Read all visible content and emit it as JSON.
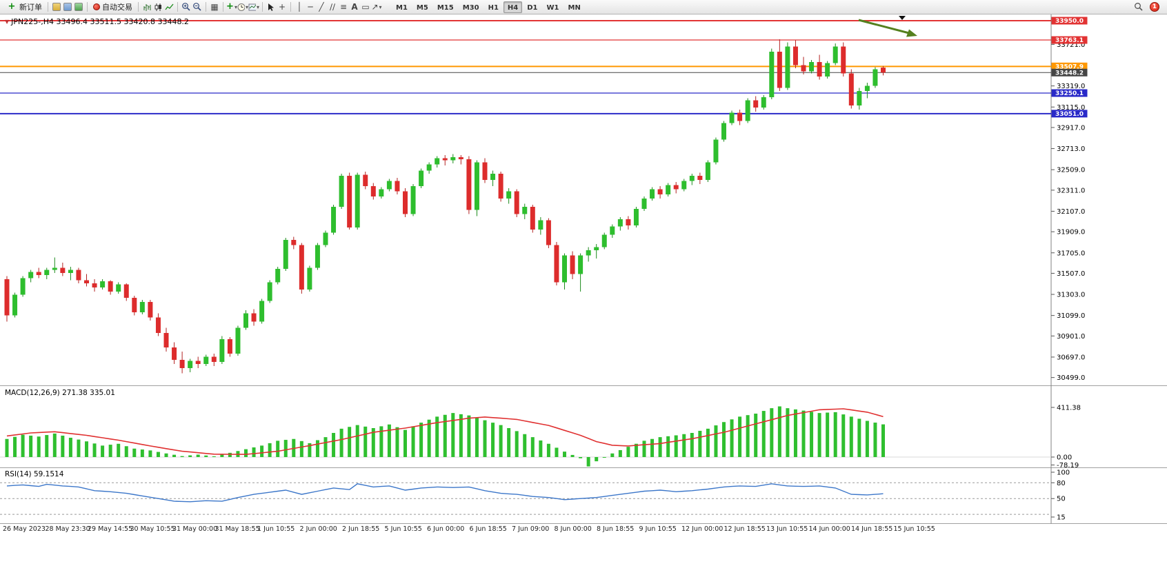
{
  "toolbar": {
    "new_order_label": "新订单",
    "auto_trading_label": "自动交易",
    "timeframes": [
      "M1",
      "M5",
      "M15",
      "M30",
      "H1",
      "H4",
      "D1",
      "W1",
      "MN"
    ],
    "active_timeframe": "H4",
    "notification_count": "1"
  },
  "icons": {
    "plus": "+",
    "caret_down": "▾",
    "tile_windows": "▦",
    "crosshair": "+",
    "vertical_line": "│",
    "horizontal_line": "─",
    "trend_line": "╱",
    "channel": "∕∕",
    "fibonacci": "≡",
    "text_tool": "A",
    "text_label": "▭",
    "arrow_tool": "↗",
    "triangle_down": "▼"
  },
  "chart": {
    "symbol_title": "JPN225-,H4 33496.4 33511.5 33420.8 33448.2",
    "colors": {
      "bull": "#2ebe2e",
      "bear": "#dd2c2c",
      "wick_bull": "#1b8a1b",
      "wick_bear": "#b22222",
      "macd_hist": "#2fbf2f",
      "macd_signal": "#e03030",
      "rsi": "#3b76c9",
      "axis_line": "#808080",
      "separator": "#a0a0a0",
      "arrow_annotation": "#55801e"
    },
    "hlines": [
      {
        "value": 33950.0,
        "label": "33950.0",
        "color": "#e23333",
        "width": 2
      },
      {
        "value": 33763.1,
        "label": "33763.1",
        "color": "#e23333",
        "width": 1.2
      },
      {
        "value": 33507.9,
        "label": "33507.9",
        "color": "#ff9800",
        "width": 2
      },
      {
        "value": 33448.2,
        "label": "33448.2",
        "color": "#454545",
        "width": 1
      },
      {
        "value": 33250.1,
        "label": "33250.1",
        "color": "#2929c8",
        "width": 1.2
      },
      {
        "value": 33051.0,
        "label": "33051.0",
        "color": "#2929c8",
        "width": 2
      }
    ],
    "y_ticks": [
      "33721.0",
      "33319.0",
      "33115.0",
      "32917.0",
      "32713.0",
      "32509.0",
      "32311.0",
      "32107.0",
      "31909.0",
      "31705.0",
      "31507.0",
      "31303.0",
      "31099.0",
      "30901.0",
      "30697.0",
      "30499.0"
    ]
  },
  "chart_data": {
    "type": "candlestick",
    "symbol": "JPN225-",
    "timeframe": "H4",
    "ohlc_readout": {
      "open": "33496.4",
      "high": "33511.5",
      "low": "33420.8",
      "close": "33448.2"
    },
    "x_labels": [
      "26 May 2023",
      "28 May 23:30",
      "29 May 14:55",
      "30 May 10:55",
      "31 May 00:00",
      "31 May 18:55",
      "1 Jun 10:55",
      "2 Jun 00:00",
      "2 Jun 18:55",
      "5 Jun 10:55",
      "6 Jun 00:00",
      "6 Jun 18:55",
      "7 Jun 09:00",
      "8 Jun 00:00",
      "8 Jun 18:55",
      "9 Jun 10:55",
      "12 Jun 00:00",
      "12 Jun 18:55",
      "13 Jun 10:55",
      "14 Jun 00:00",
      "14 Jun 18:55",
      "15 Jun 10:55"
    ],
    "candles": [
      [
        31450,
        31480,
        31040,
        31100
      ],
      [
        31100,
        31320,
        31080,
        31300
      ],
      [
        31300,
        31480,
        31280,
        31460
      ],
      [
        31460,
        31540,
        31420,
        31520
      ],
      [
        31520,
        31560,
        31460,
        31490
      ],
      [
        31490,
        31560,
        31450,
        31540
      ],
      [
        31540,
        31660,
        31510,
        31560
      ],
      [
        31560,
        31610,
        31480,
        31510
      ],
      [
        31510,
        31570,
        31440,
        31540
      ],
      [
        31540,
        31560,
        31410,
        31440
      ],
      [
        31440,
        31500,
        31380,
        31410
      ],
      [
        31410,
        31450,
        31330,
        31370
      ],
      [
        31370,
        31450,
        31350,
        31430
      ],
      [
        31430,
        31440,
        31300,
        31330
      ],
      [
        31330,
        31420,
        31310,
        31400
      ],
      [
        31400,
        31410,
        31240,
        31270
      ],
      [
        31270,
        31290,
        31100,
        31130
      ],
      [
        31130,
        31250,
        31110,
        31230
      ],
      [
        31230,
        31250,
        31050,
        31080
      ],
      [
        31080,
        31120,
        30900,
        30930
      ],
      [
        30930,
        30980,
        30750,
        30790
      ],
      [
        30790,
        30840,
        30630,
        30670
      ],
      [
        30670,
        30750,
        30540,
        30590
      ],
      [
        30590,
        30680,
        30550,
        30660
      ],
      [
        30660,
        30700,
        30590,
        30630
      ],
      [
        30630,
        30720,
        30610,
        30700
      ],
      [
        30700,
        30730,
        30610,
        30650
      ],
      [
        30650,
        30900,
        30630,
        30870
      ],
      [
        30870,
        30890,
        30700,
        30730
      ],
      [
        30730,
        31000,
        30710,
        30980
      ],
      [
        30980,
        31150,
        30960,
        31120
      ],
      [
        31120,
        31160,
        31000,
        31040
      ],
      [
        31040,
        31260,
        31020,
        31240
      ],
      [
        31240,
        31440,
        31220,
        31420
      ],
      [
        31420,
        31570,
        31400,
        31550
      ],
      [
        31550,
        31850,
        31530,
        31830
      ],
      [
        31830,
        31860,
        31740,
        31780
      ],
      [
        31780,
        31800,
        31310,
        31350
      ],
      [
        31350,
        31580,
        31330,
        31560
      ],
      [
        31560,
        31800,
        31540,
        31780
      ],
      [
        31780,
        31920,
        31760,
        31900
      ],
      [
        31900,
        32170,
        31880,
        32150
      ],
      [
        32150,
        32470,
        32130,
        32450
      ],
      [
        32450,
        32480,
        31930,
        31950
      ],
      [
        31950,
        32480,
        31930,
        32460
      ],
      [
        32460,
        32490,
        32320,
        32350
      ],
      [
        32350,
        32380,
        32220,
        32250
      ],
      [
        32250,
        32340,
        32230,
        32320
      ],
      [
        32320,
        32420,
        32300,
        32400
      ],
      [
        32400,
        32430,
        32270,
        32300
      ],
      [
        32300,
        32330,
        32050,
        32080
      ],
      [
        32080,
        32370,
        32060,
        32350
      ],
      [
        32350,
        32520,
        32330,
        32500
      ],
      [
        32500,
        32580,
        32470,
        32560
      ],
      [
        32560,
        32640,
        32530,
        32620
      ],
      [
        32620,
        32650,
        32550,
        32600
      ],
      [
        32600,
        32660,
        32570,
        32630
      ],
      [
        32630,
        32650,
        32560,
        32610
      ],
      [
        32610,
        32640,
        32080,
        32120
      ],
      [
        32120,
        32600,
        32060,
        32580
      ],
      [
        32580,
        32620,
        32380,
        32410
      ],
      [
        32410,
        32500,
        32350,
        32470
      ],
      [
        32470,
        32490,
        32200,
        32230
      ],
      [
        32230,
        32330,
        32180,
        32300
      ],
      [
        32300,
        32320,
        32050,
        32080
      ],
      [
        32080,
        32180,
        32030,
        32150
      ],
      [
        32150,
        32170,
        31900,
        31930
      ],
      [
        31930,
        32050,
        31880,
        32020
      ],
      [
        32020,
        32040,
        31750,
        31780
      ],
      [
        31780,
        31810,
        31390,
        31420
      ],
      [
        31420,
        31700,
        31350,
        31680
      ],
      [
        31680,
        31720,
        31450,
        31500
      ],
      [
        31500,
        31700,
        31330,
        31680
      ],
      [
        31680,
        31760,
        31620,
        31730
      ],
      [
        31730,
        31790,
        31650,
        31760
      ],
      [
        31760,
        31900,
        31740,
        31880
      ],
      [
        31880,
        31980,
        31850,
        31960
      ],
      [
        31960,
        32050,
        31920,
        32030
      ],
      [
        32030,
        32060,
        31930,
        31970
      ],
      [
        31970,
        32150,
        31950,
        32130
      ],
      [
        32130,
        32250,
        32110,
        32230
      ],
      [
        32230,
        32340,
        32210,
        32320
      ],
      [
        32320,
        32350,
        32230,
        32270
      ],
      [
        32270,
        32380,
        32250,
        32360
      ],
      [
        32360,
        32390,
        32280,
        32320
      ],
      [
        32320,
        32420,
        32300,
        32400
      ],
      [
        32400,
        32470,
        32360,
        32450
      ],
      [
        32450,
        32480,
        32370,
        32410
      ],
      [
        32410,
        32600,
        32390,
        32580
      ],
      [
        32580,
        32820,
        32560,
        32800
      ],
      [
        32800,
        32980,
        32780,
        32960
      ],
      [
        32960,
        33080,
        32940,
        33060
      ],
      [
        33060,
        33090,
        32940,
        32980
      ],
      [
        32980,
        33200,
        32960,
        33180
      ],
      [
        33180,
        33220,
        33070,
        33110
      ],
      [
        33110,
        33230,
        33090,
        33210
      ],
      [
        33210,
        33680,
        33190,
        33650
      ],
      [
        33650,
        33770,
        33270,
        33300
      ],
      [
        33300,
        33740,
        33280,
        33700
      ],
      [
        33700,
        33760,
        33490,
        33520
      ],
      [
        33520,
        33600,
        33430,
        33460
      ],
      [
        33460,
        33570,
        33440,
        33550
      ],
      [
        33550,
        33620,
        33380,
        33410
      ],
      [
        33410,
        33560,
        33390,
        33540
      ],
      [
        33540,
        33730,
        33520,
        33700
      ],
      [
        33700,
        33740,
        33410,
        33440
      ],
      [
        33440,
        33480,
        33100,
        33130
      ],
      [
        33130,
        33300,
        33090,
        33270
      ],
      [
        33270,
        33350,
        33200,
        33320
      ],
      [
        33320,
        33500,
        33300,
        33480
      ],
      [
        33496,
        33512,
        33421,
        33448
      ]
    ],
    "macd": {
      "label": "MACD(12,26,9) 271.38 335.01",
      "main_value": "271.38",
      "signal_value": "335.01",
      "scale": [
        "411.38",
        "0.00",
        "-78.19"
      ],
      "histogram_anchors": [
        [
          0,
          150
        ],
        [
          2,
          185
        ],
        [
          4,
          170
        ],
        [
          6,
          195
        ],
        [
          8,
          160
        ],
        [
          10,
          130
        ],
        [
          12,
          95
        ],
        [
          14,
          110
        ],
        [
          16,
          70
        ],
        [
          18,
          55
        ],
        [
          20,
          30
        ],
        [
          22,
          8
        ],
        [
          24,
          20
        ],
        [
          26,
          6
        ],
        [
          28,
          35
        ],
        [
          30,
          65
        ],
        [
          32,
          95
        ],
        [
          34,
          135
        ],
        [
          36,
          150
        ],
        [
          38,
          115
        ],
        [
          40,
          165
        ],
        [
          42,
          235
        ],
        [
          44,
          265
        ],
        [
          46,
          240
        ],
        [
          48,
          270
        ],
        [
          50,
          225
        ],
        [
          52,
          285
        ],
        [
          54,
          335
        ],
        [
          56,
          365
        ],
        [
          58,
          345
        ],
        [
          60,
          305
        ],
        [
          62,
          265
        ],
        [
          64,
          215
        ],
        [
          66,
          165
        ],
        [
          68,
          110
        ],
        [
          70,
          45
        ],
        [
          72,
          -10
        ],
        [
          73,
          -78
        ],
        [
          74,
          -35
        ],
        [
          76,
          30
        ],
        [
          78,
          85
        ],
        [
          80,
          135
        ],
        [
          82,
          165
        ],
        [
          84,
          180
        ],
        [
          86,
          200
        ],
        [
          88,
          235
        ],
        [
          90,
          290
        ],
        [
          92,
          335
        ],
        [
          94,
          360
        ],
        [
          96,
          405
        ],
        [
          97,
          420
        ],
        [
          98,
          405
        ],
        [
          100,
          385
        ],
        [
          102,
          365
        ],
        [
          104,
          372
        ],
        [
          106,
          335
        ],
        [
          108,
          300
        ],
        [
          110,
          271
        ]
      ],
      "signal_anchors": [
        [
          0,
          175
        ],
        [
          3,
          200
        ],
        [
          6,
          210
        ],
        [
          10,
          180
        ],
        [
          14,
          140
        ],
        [
          18,
          92
        ],
        [
          22,
          48
        ],
        [
          26,
          24
        ],
        [
          30,
          22
        ],
        [
          34,
          48
        ],
        [
          38,
          95
        ],
        [
          42,
          145
        ],
        [
          46,
          205
        ],
        [
          50,
          240
        ],
        [
          54,
          285
        ],
        [
          58,
          322
        ],
        [
          60,
          332
        ],
        [
          64,
          312
        ],
        [
          68,
          262
        ],
        [
          72,
          180
        ],
        [
          74,
          128
        ],
        [
          76,
          98
        ],
        [
          78,
          92
        ],
        [
          82,
          112
        ],
        [
          86,
          152
        ],
        [
          90,
          205
        ],
        [
          94,
          275
        ],
        [
          98,
          345
        ],
        [
          102,
          392
        ],
        [
          105,
          400
        ],
        [
          108,
          372
        ],
        [
          110,
          335
        ]
      ]
    },
    "rsi": {
      "label": "RSI(14) 59.1514",
      "value": "59.1514",
      "scale": [
        "100",
        "80",
        "50",
        "15"
      ],
      "levels": [
        80,
        50,
        20
      ],
      "anchors": [
        [
          0,
          74
        ],
        [
          2,
          76
        ],
        [
          4,
          73
        ],
        [
          5,
          77
        ],
        [
          7,
          74
        ],
        [
          9,
          72
        ],
        [
          11,
          65
        ],
        [
          13,
          63
        ],
        [
          15,
          60
        ],
        [
          17,
          55
        ],
        [
          19,
          50
        ],
        [
          21,
          45
        ],
        [
          23,
          44
        ],
        [
          25,
          46
        ],
        [
          27,
          45
        ],
        [
          29,
          52
        ],
        [
          31,
          58
        ],
        [
          33,
          62
        ],
        [
          35,
          66
        ],
        [
          37,
          58
        ],
        [
          39,
          64
        ],
        [
          41,
          70
        ],
        [
          43,
          67
        ],
        [
          44,
          78
        ],
        [
          46,
          72
        ],
        [
          48,
          74
        ],
        [
          50,
          66
        ],
        [
          52,
          70
        ],
        [
          54,
          72
        ],
        [
          56,
          71
        ],
        [
          58,
          72
        ],
        [
          60,
          65
        ],
        [
          62,
          60
        ],
        [
          64,
          58
        ],
        [
          66,
          54
        ],
        [
          68,
          52
        ],
        [
          70,
          48
        ],
        [
          72,
          50
        ],
        [
          74,
          52
        ],
        [
          76,
          56
        ],
        [
          78,
          60
        ],
        [
          80,
          64
        ],
        [
          82,
          66
        ],
        [
          84,
          63
        ],
        [
          86,
          65
        ],
        [
          88,
          68
        ],
        [
          90,
          72
        ],
        [
          92,
          74
        ],
        [
          94,
          73
        ],
        [
          96,
          78
        ],
        [
          98,
          74
        ],
        [
          100,
          73
        ],
        [
          102,
          74
        ],
        [
          104,
          70
        ],
        [
          106,
          58
        ],
        [
          108,
          57
        ],
        [
          110,
          59.15
        ]
      ]
    }
  },
  "annotations": {
    "arrow": {
      "color": "#55801e",
      "direction": "down-right",
      "description": "green diagonal arrow near 33950 resistance pointing down-right"
    }
  }
}
